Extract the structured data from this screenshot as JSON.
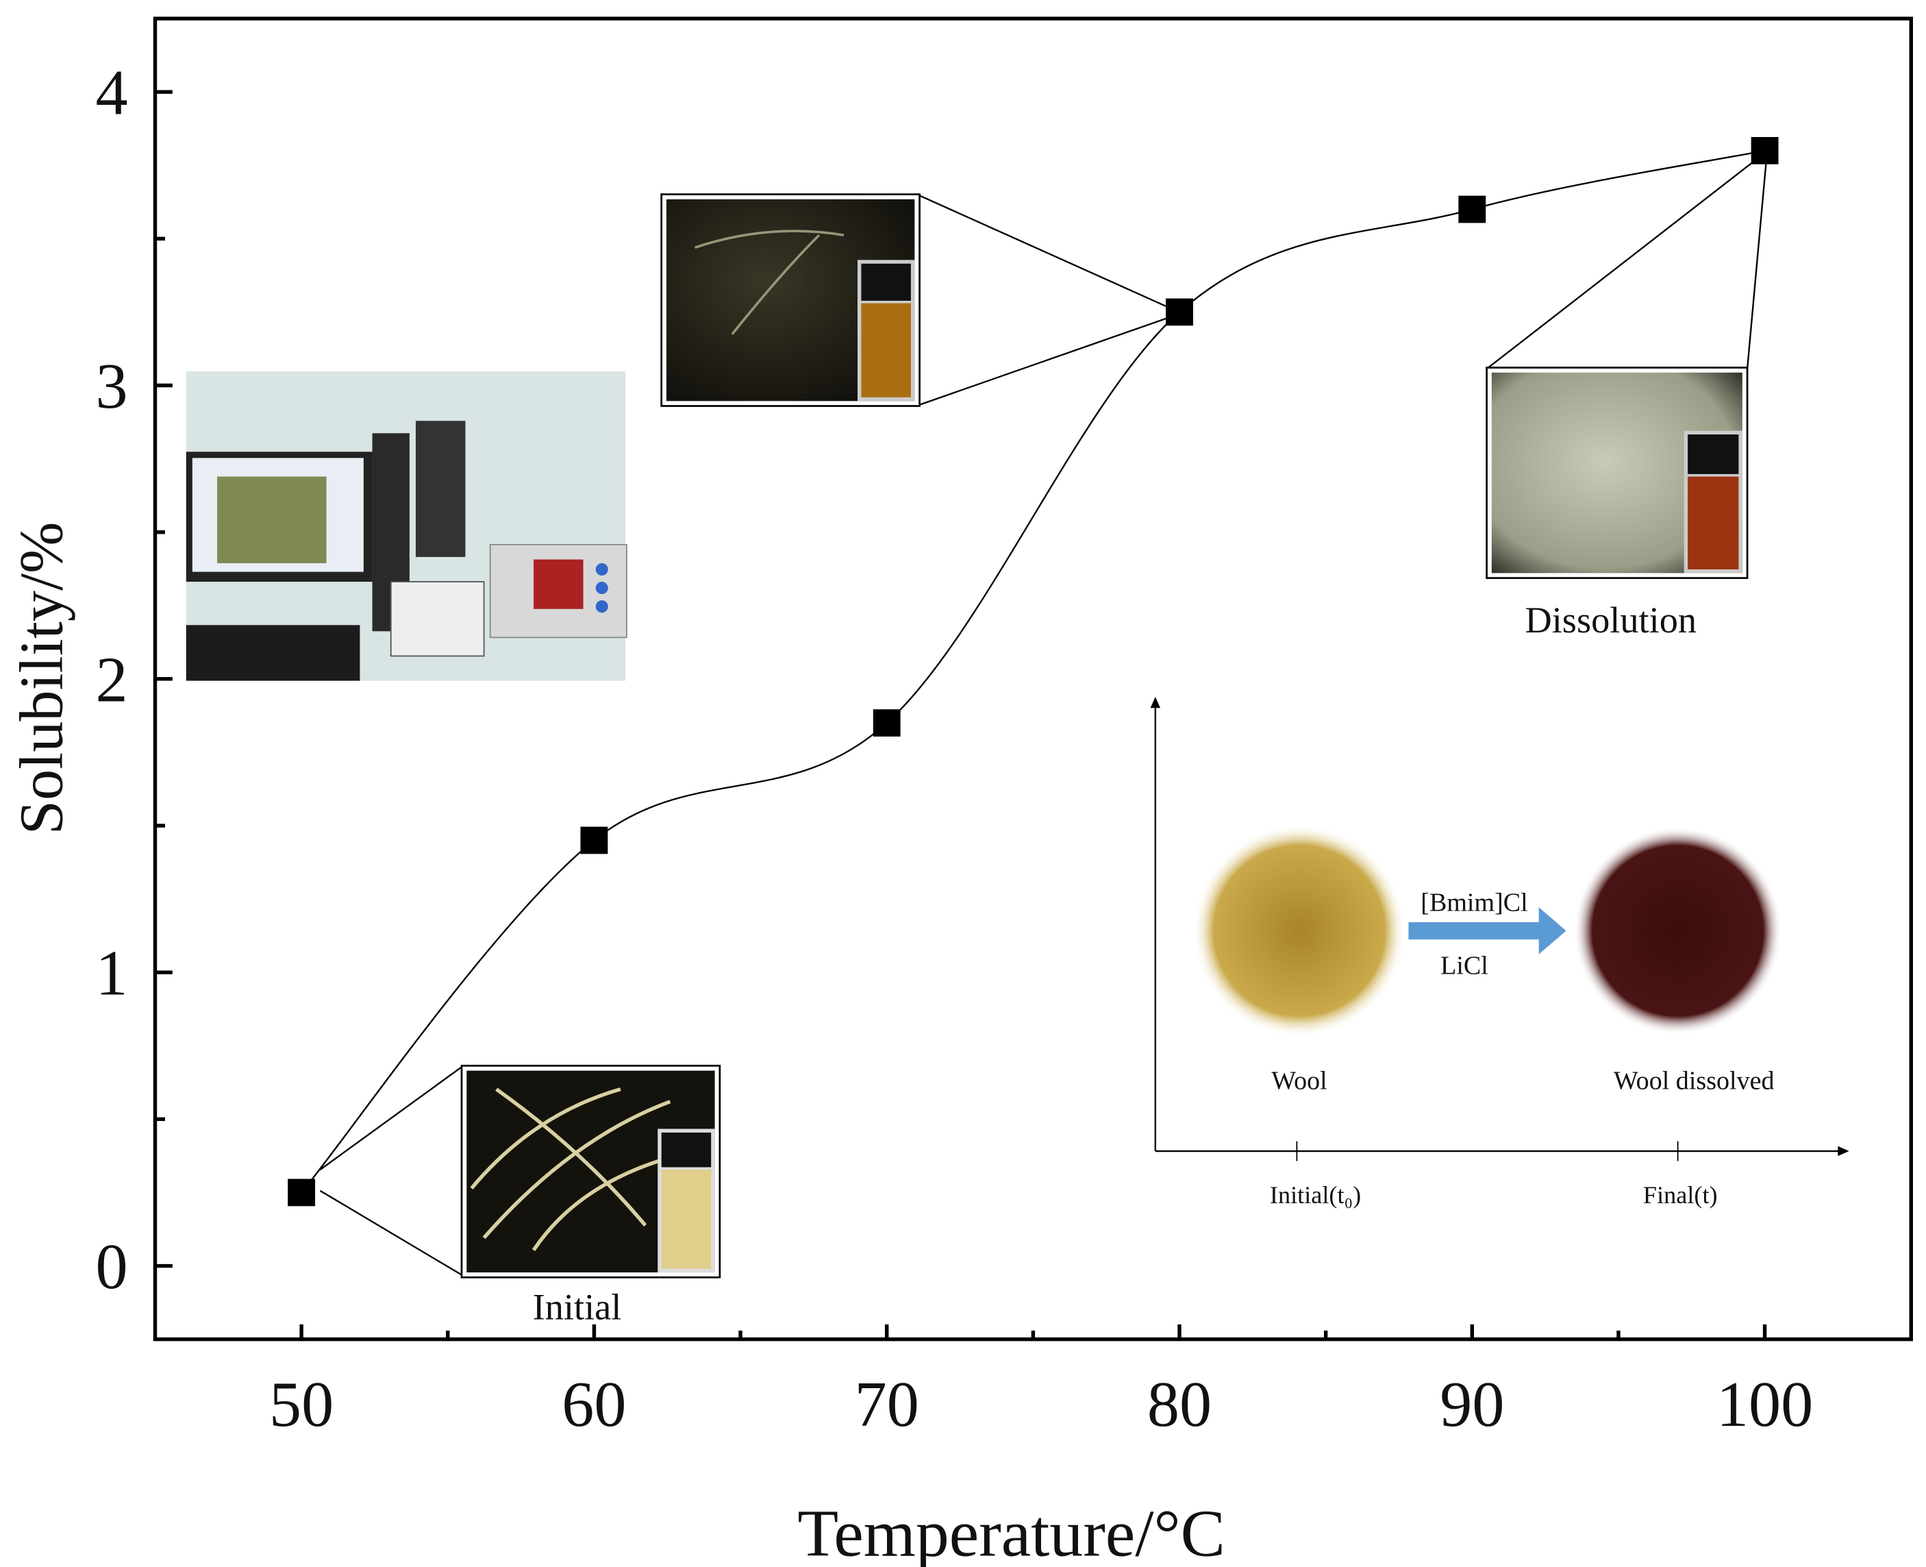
{
  "chart_data": {
    "type": "line",
    "x_label": "Temperature/°C",
    "y_label": "Solubility/%",
    "x": [
      50,
      60,
      70,
      80,
      90,
      100
    ],
    "values": [
      0.25,
      1.45,
      1.85,
      3.25,
      3.6,
      3.8
    ],
    "color": "#000000",
    "xlim": [
      45,
      105
    ],
    "xticks": [
      50,
      60,
      70,
      80,
      90,
      100
    ],
    "xminor_ticks": [
      55,
      65,
      75,
      85,
      95
    ],
    "ylim": [
      -0.25,
      4.25
    ],
    "yticks": [
      0,
      1,
      2,
      3,
      4
    ],
    "yminor_ticks": [
      0.5,
      1.5,
      2.5,
      3.5
    ],
    "smooth": true,
    "annotations": {
      "initial": "Initial",
      "dissolution": "Dissolution"
    },
    "inset": {
      "reagent_1": "[Bmim]Cl",
      "reagent_2": "LiCl",
      "start_label": "Wool",
      "end_label": "Wool dissolved",
      "x_start": "Initial(t₀)",
      "x_end": "Final(t)"
    }
  }
}
